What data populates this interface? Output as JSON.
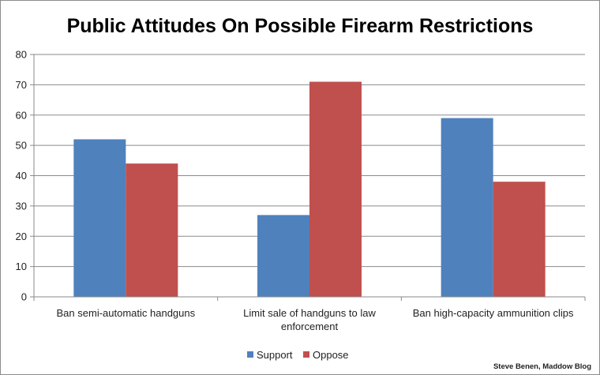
{
  "chart_data": {
    "type": "bar",
    "title": "Public Attitudes On Possible Firearm Restrictions",
    "categories": [
      [
        "Ban semi-automatic handguns"
      ],
      [
        "Limit sale of handguns to law",
        "enforcement"
      ],
      [
        "Ban high-capacity ammunition clips"
      ]
    ],
    "series": [
      {
        "name": "Support",
        "color": "#4f81bd",
        "values": [
          52,
          27,
          59
        ]
      },
      {
        "name": "Oppose",
        "color": "#c0504d",
        "values": [
          44,
          71,
          38
        ]
      }
    ],
    "ylim": [
      0,
      80
    ],
    "yticks": [
      0,
      10,
      20,
      30,
      40,
      50,
      60,
      70,
      80
    ],
    "grid": true,
    "legend": "bottom"
  },
  "credit": "Steve Benen, Maddow Blog"
}
